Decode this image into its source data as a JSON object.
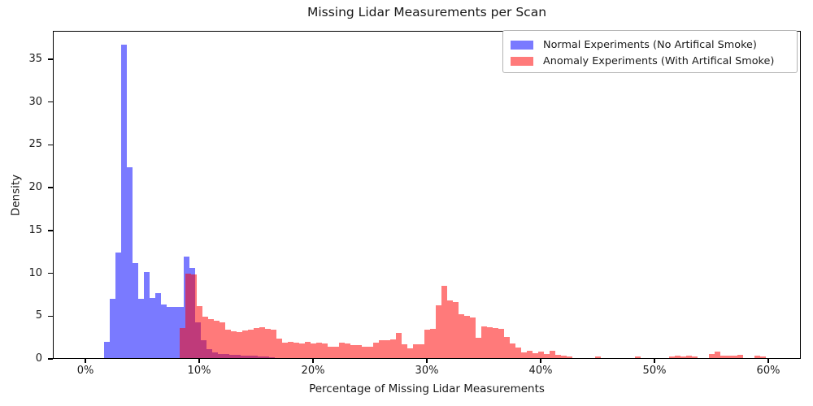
{
  "chart_data": {
    "type": "bar",
    "subtype": "overlaid-histogram",
    "title": "Missing Lidar Measurements per Scan",
    "xlabel": "Percentage of Missing Lidar Measurements",
    "ylabel": "Density",
    "xlim_percent": [
      -2.86,
      62.86
    ],
    "ylim": [
      0,
      38.3
    ],
    "grid": false,
    "legend_position": "upper-right",
    "background_color": "#ffffff",
    "xticks": [
      {
        "label": "0%",
        "value": 0
      },
      {
        "label": "10%",
        "value": 10
      },
      {
        "label": "20%",
        "value": 20
      },
      {
        "label": "30%",
        "value": 30
      },
      {
        "label": "40%",
        "value": 40
      },
      {
        "label": "50%",
        "value": 50
      },
      {
        "label": "60%",
        "value": 60
      }
    ],
    "yticks": [
      {
        "label": "0",
        "value": 0
      },
      {
        "label": "5",
        "value": 5
      },
      {
        "label": "10",
        "value": 10
      },
      {
        "label": "15",
        "value": 15
      },
      {
        "label": "20",
        "value": 20
      },
      {
        "label": "25",
        "value": 25
      },
      {
        "label": "30",
        "value": 30
      },
      {
        "label": "35",
        "value": 35
      }
    ],
    "bin_width_percent": 0.5,
    "series": [
      {
        "name": "Normal Experiments (No Artifical Smoke)",
        "color": "#0000ff",
        "alpha": 0.52,
        "rendered_fill": "rgba(0,0,255,0.52)",
        "bin_start_percent": 1.7,
        "densities": [
          1.9,
          6.9,
          12.3,
          36.6,
          22.3,
          11.1,
          6.9,
          10.1,
          7.0,
          7.6,
          6.3,
          6.0,
          6.0,
          6.0,
          11.9,
          10.5,
          4.2,
          2.1,
          1.0,
          0.7,
          0.5,
          0.45,
          0.4,
          0.35,
          0.3,
          0.3,
          0.25,
          0.2,
          0.15,
          0.1
        ]
      },
      {
        "name": "Anomaly Experiments (With Artifical Smoke)",
        "color": "#ff0000",
        "alpha": 0.52,
        "rendered_fill": "rgba(255,0,0,0.52)",
        "bin_start_percent": 8.3,
        "densities": [
          3.5,
          9.9,
          9.8,
          6.1,
          4.8,
          4.6,
          4.4,
          4.2,
          3.3,
          3.1,
          3.0,
          3.2,
          3.3,
          3.5,
          3.6,
          3.4,
          3.3,
          2.3,
          1.8,
          1.9,
          1.8,
          1.7,
          1.9,
          1.7,
          1.8,
          1.7,
          1.3,
          1.3,
          1.8,
          1.7,
          1.5,
          1.5,
          1.3,
          1.3,
          1.8,
          2.1,
          2.1,
          2.2,
          2.9,
          1.6,
          1.1,
          1.6,
          1.6,
          3.3,
          3.4,
          6.2,
          8.4,
          6.7,
          6.5,
          5.1,
          4.9,
          4.7,
          2.4,
          3.7,
          3.6,
          3.5,
          3.4,
          2.5,
          1.7,
          1.2,
          0.7,
          0.9,
          0.6,
          0.75,
          0.5,
          0.9,
          0.4,
          0.3,
          0.15,
          0,
          0,
          0,
          0,
          0.2,
          0,
          0,
          0,
          0,
          0,
          0,
          0.15,
          0,
          0,
          0,
          0,
          0,
          0.2,
          0.25,
          0.2,
          0.25,
          0.2,
          0,
          0,
          0.5,
          0.75,
          0.3,
          0.25,
          0.25,
          0.35,
          0,
          0,
          0.25,
          0.2,
          0
        ]
      }
    ]
  }
}
